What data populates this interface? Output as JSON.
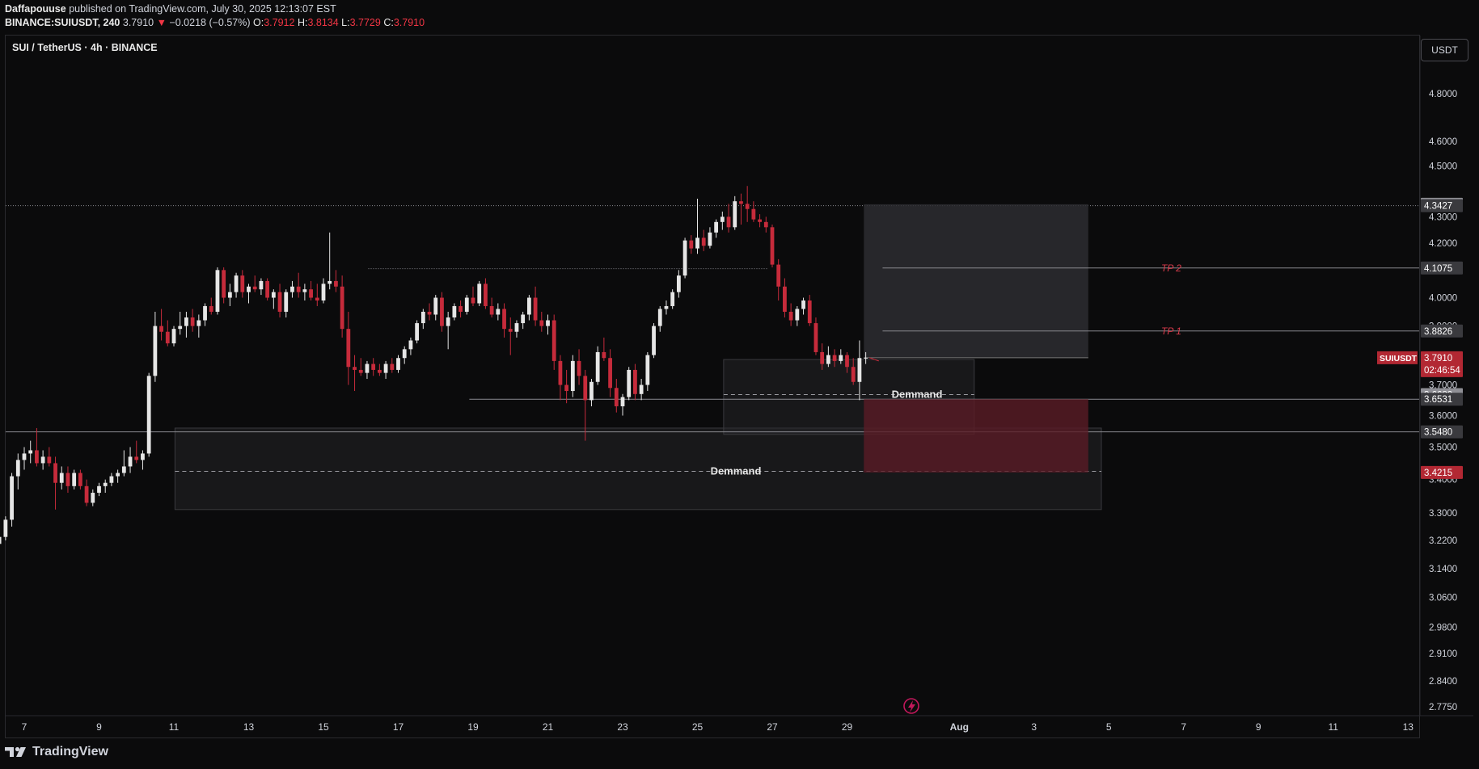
{
  "header": {
    "author": "Daffapouuse",
    "published": "published on TradingView.com, July 30, 2025 12:13:07 EST",
    "symbol_line": "BINANCE:SUIUSDT, 240",
    "last": "3.7910",
    "change": "−0.0218 (−0.57%)",
    "o_label": "O:",
    "o_value": "3.7912",
    "h_label": "H:",
    "h_value": "3.8134",
    "l_label": "L:",
    "l_value": "3.7729",
    "c_label": "C:",
    "c_value": "3.7910"
  },
  "chart_title": "SUI / TetherUS · 4h · BINANCE",
  "currency_button": "USDT",
  "footer": {
    "brand": "TradingView"
  },
  "colors": {
    "background": "#0b0b0c",
    "bull": "#e6e6e6",
    "bear": "#c62b3b",
    "tp_text": "#d83b4b",
    "stop_zone": "#5a1c26",
    "target_zone": "#2d2d31"
  },
  "chart_data": {
    "type": "candlestick",
    "symbol": "SUIUSDT",
    "timeframe": "4h",
    "y_scale": "log",
    "ylim": [
      2.75,
      4.98
    ],
    "xlim_days": [
      6.6,
      44.2
    ],
    "x_ticks": [
      {
        "d": 7,
        "label": "7"
      },
      {
        "d": 9,
        "label": "9"
      },
      {
        "d": 11,
        "label": "11"
      },
      {
        "d": 13,
        "label": "13"
      },
      {
        "d": 15,
        "label": "15"
      },
      {
        "d": 17,
        "label": "17"
      },
      {
        "d": 19,
        "label": "19"
      },
      {
        "d": 21,
        "label": "21"
      },
      {
        "d": 23,
        "label": "23"
      },
      {
        "d": 25,
        "label": "25"
      },
      {
        "d": 27,
        "label": "27"
      },
      {
        "d": 29,
        "label": "29"
      },
      {
        "d": 32,
        "label": "Aug"
      },
      {
        "d": 34,
        "label": "3"
      },
      {
        "d": 36,
        "label": "5"
      },
      {
        "d": 38,
        "label": "7"
      },
      {
        "d": 40,
        "label": "9"
      },
      {
        "d": 42,
        "label": "11"
      },
      {
        "d": 44,
        "label": "13"
      }
    ],
    "y_ticks": [
      "4.8000",
      "4.6000",
      "4.5000",
      "4.3000",
      "4.2000",
      "4.1000",
      "4.0000",
      "3.9000",
      "3.7000",
      "3.6000",
      "3.5000",
      "3.4000",
      "3.3000",
      "3.2200",
      "3.1400",
      "3.0600",
      "2.9800",
      "2.9100",
      "2.8400",
      "2.7750"
    ],
    "price_labels": [
      {
        "value": 4.3484,
        "text": "4.3484",
        "style": "gray"
      },
      {
        "value": 4.3427,
        "text": "4.3427",
        "style": "dark"
      },
      {
        "value": 4.1075,
        "text": "4.1075",
        "style": "dark"
      },
      {
        "value": 3.8826,
        "text": "3.8826",
        "style": "dark"
      },
      {
        "value": 3.791,
        "text": "3.7910",
        "style": "red",
        "countdown": "02:46:54",
        "tag": "SUIUSDT"
      },
      {
        "value": 3.6682,
        "text": "3.6682",
        "style": "gray"
      },
      {
        "value": 3.6531,
        "text": "3.6531",
        "style": "dark"
      },
      {
        "value": 3.548,
        "text": "3.5480",
        "style": "dark"
      },
      {
        "value": 3.4215,
        "text": "3.4215",
        "style": "red"
      }
    ],
    "annotations": [
      {
        "type": "zone",
        "label": "Demmand",
        "d0": 11.03,
        "d1": 35.8,
        "top": 3.56,
        "bottom": 3.31,
        "mid": 3.425
      },
      {
        "type": "zone",
        "label": "Demmand",
        "d0": 25.7,
        "d1": 32.4,
        "top": 3.785,
        "bottom": 3.54,
        "mid": 3.668
      },
      {
        "type": "target",
        "d0": 29.45,
        "d1": 35.45,
        "top": 4.3484,
        "bottom": 3.791
      },
      {
        "type": "stop",
        "d0": 29.45,
        "d1": 35.45,
        "top": 3.6531,
        "bottom": 3.4215
      },
      {
        "type": "level",
        "label": "TP 2",
        "value": 4.1075,
        "d0": 29.95
      },
      {
        "type": "level",
        "label": "TP 1",
        "value": 3.8826,
        "d0": 29.95
      }
    ],
    "candles": [
      {
        "o": 2.9,
        "h": 2.94,
        "l": 2.86,
        "c": 2.89
      },
      {
        "o": 2.89,
        "h": 2.91,
        "l": 2.87,
        "c": 2.9
      },
      {
        "o": 2.9,
        "h": 2.93,
        "l": 2.89,
        "c": 2.92
      },
      {
        "o": 2.92,
        "h": 2.94,
        "l": 2.88,
        "c": 2.9
      },
      {
        "o": 2.9,
        "h": 2.93,
        "l": 2.88,
        "c": 2.92
      },
      {
        "o": 2.92,
        "h": 2.93,
        "l": 2.89,
        "c": 2.9
      },
      {
        "o": 2.9,
        "h": 2.91,
        "l": 2.87,
        "c": 2.89
      },
      {
        "o": 2.89,
        "h": 2.9,
        "l": 2.79,
        "c": 2.86
      },
      {
        "o": 2.86,
        "h": 2.88,
        "l": 2.84,
        "c": 2.85
      },
      {
        "o": 2.85,
        "h": 2.87,
        "l": 2.83,
        "c": 2.86
      },
      {
        "o": 2.86,
        "h": 2.88,
        "l": 2.84,
        "c": 2.87
      },
      {
        "o": 2.87,
        "h": 2.9,
        "l": 2.85,
        "c": 2.89
      },
      {
        "o": 2.89,
        "h": 2.9,
        "l": 2.86,
        "c": 2.87
      },
      {
        "o": 2.87,
        "h": 2.91,
        "l": 2.86,
        "c": 2.9
      },
      {
        "o": 2.9,
        "h": 2.92,
        "l": 2.88,
        "c": 2.89
      },
      {
        "o": 2.89,
        "h": 2.92,
        "l": 2.88,
        "c": 2.91
      },
      {
        "o": 2.91,
        "h": 2.93,
        "l": 2.9,
        "c": 2.92
      },
      {
        "o": 2.92,
        "h": 2.95,
        "l": 2.91,
        "c": 2.94
      },
      {
        "o": 2.94,
        "h": 2.96,
        "l": 2.93,
        "c": 2.95
      },
      {
        "o": 2.95,
        "h": 3.02,
        "l": 2.94,
        "c": 3.01
      },
      {
        "o": 3.01,
        "h": 3.06,
        "l": 3.0,
        "c": 3.05
      },
      {
        "o": 3.05,
        "h": 3.09,
        "l": 3.03,
        "c": 3.08
      },
      {
        "o": 3.08,
        "h": 3.17,
        "l": 3.07,
        "c": 3.16
      },
      {
        "o": 3.16,
        "h": 3.23,
        "l": 3.14,
        "c": 3.21
      },
      {
        "o": 3.21,
        "h": 3.25,
        "l": 3.19,
        "c": 3.23
      },
      {
        "o": 3.23,
        "h": 3.29,
        "l": 3.22,
        "c": 3.28
      },
      {
        "o": 3.28,
        "h": 3.42,
        "l": 3.26,
        "c": 3.41
      },
      {
        "o": 3.41,
        "h": 3.48,
        "l": 3.37,
        "c": 3.46
      },
      {
        "o": 3.46,
        "h": 3.5,
        "l": 3.43,
        "c": 3.48
      },
      {
        "o": 3.48,
        "h": 3.52,
        "l": 3.45,
        "c": 3.49
      },
      {
        "o": 3.49,
        "h": 3.56,
        "l": 3.44,
        "c": 3.45
      },
      {
        "o": 3.45,
        "h": 3.49,
        "l": 3.43,
        "c": 3.47
      },
      {
        "o": 3.47,
        "h": 3.5,
        "l": 3.44,
        "c": 3.45
      },
      {
        "o": 3.45,
        "h": 3.47,
        "l": 3.31,
        "c": 3.39
      },
      {
        "o": 3.39,
        "h": 3.44,
        "l": 3.37,
        "c": 3.42
      },
      {
        "o": 3.42,
        "h": 3.44,
        "l": 3.36,
        "c": 3.38
      },
      {
        "o": 3.38,
        "h": 3.43,
        "l": 3.37,
        "c": 3.42
      },
      {
        "o": 3.42,
        "h": 3.43,
        "l": 3.37,
        "c": 3.38
      },
      {
        "o": 3.38,
        "h": 3.4,
        "l": 3.32,
        "c": 3.33
      },
      {
        "o": 3.33,
        "h": 3.37,
        "l": 3.32,
        "c": 3.36
      },
      {
        "o": 3.36,
        "h": 3.39,
        "l": 3.35,
        "c": 3.38
      },
      {
        "o": 3.38,
        "h": 3.4,
        "l": 3.36,
        "c": 3.39
      },
      {
        "o": 3.39,
        "h": 3.42,
        "l": 3.38,
        "c": 3.41
      },
      {
        "o": 3.41,
        "h": 3.43,
        "l": 3.39,
        "c": 3.42
      },
      {
        "o": 3.42,
        "h": 3.49,
        "l": 3.41,
        "c": 3.44
      },
      {
        "o": 3.44,
        "h": 3.5,
        "l": 3.42,
        "c": 3.47
      },
      {
        "o": 3.47,
        "h": 3.52,
        "l": 3.45,
        "c": 3.46
      },
      {
        "o": 3.46,
        "h": 3.49,
        "l": 3.43,
        "c": 3.48
      },
      {
        "o": 3.48,
        "h": 3.74,
        "l": 3.47,
        "c": 3.73
      },
      {
        "o": 3.73,
        "h": 3.95,
        "l": 3.71,
        "c": 3.9
      },
      {
        "o": 3.9,
        "h": 3.96,
        "l": 3.85,
        "c": 3.88
      },
      {
        "o": 3.88,
        "h": 3.92,
        "l": 3.83,
        "c": 3.84
      },
      {
        "o": 3.84,
        "h": 3.9,
        "l": 3.83,
        "c": 3.89
      },
      {
        "o": 3.89,
        "h": 3.95,
        "l": 3.87,
        "c": 3.9
      },
      {
        "o": 3.9,
        "h": 3.95,
        "l": 3.86,
        "c": 3.93
      },
      {
        "o": 3.93,
        "h": 3.96,
        "l": 3.88,
        "c": 3.9
      },
      {
        "o": 3.9,
        "h": 3.94,
        "l": 3.86,
        "c": 3.92
      },
      {
        "o": 3.92,
        "h": 3.98,
        "l": 3.9,
        "c": 3.97
      },
      {
        "o": 3.97,
        "h": 4.0,
        "l": 3.94,
        "c": 3.95
      },
      {
        "o": 3.95,
        "h": 4.11,
        "l": 3.94,
        "c": 4.1
      },
      {
        "o": 4.1,
        "h": 4.11,
        "l": 3.98,
        "c": 4.0
      },
      {
        "o": 4.0,
        "h": 4.05,
        "l": 3.97,
        "c": 4.02
      },
      {
        "o": 4.02,
        "h": 4.09,
        "l": 4.0,
        "c": 4.08
      },
      {
        "o": 4.08,
        "h": 4.1,
        "l": 4.0,
        "c": 4.02
      },
      {
        "o": 4.02,
        "h": 4.05,
        "l": 3.98,
        "c": 4.04
      },
      {
        "o": 4.04,
        "h": 4.08,
        "l": 4.02,
        "c": 4.03
      },
      {
        "o": 4.03,
        "h": 4.07,
        "l": 4.01,
        "c": 4.06
      },
      {
        "o": 4.06,
        "h": 4.07,
        "l": 3.99,
        "c": 4.0
      },
      {
        "o": 4.0,
        "h": 4.03,
        "l": 3.96,
        "c": 4.02
      },
      {
        "o": 4.02,
        "h": 4.05,
        "l": 3.93,
        "c": 3.95
      },
      {
        "o": 3.95,
        "h": 4.03,
        "l": 3.93,
        "c": 4.02
      },
      {
        "o": 4.02,
        "h": 4.06,
        "l": 4.0,
        "c": 4.04
      },
      {
        "o": 4.04,
        "h": 4.09,
        "l": 4.0,
        "c": 4.02
      },
      {
        "o": 4.02,
        "h": 4.05,
        "l": 3.99,
        "c": 4.03
      },
      {
        "o": 4.03,
        "h": 4.06,
        "l": 3.99,
        "c": 4.0
      },
      {
        "o": 4.0,
        "h": 4.05,
        "l": 3.97,
        "c": 3.99
      },
      {
        "o": 3.99,
        "h": 4.07,
        "l": 3.98,
        "c": 4.05
      },
      {
        "o": 4.05,
        "h": 4.24,
        "l": 4.03,
        "c": 4.06
      },
      {
        "o": 4.06,
        "h": 4.1,
        "l": 4.02,
        "c": 4.04
      },
      {
        "o": 4.04,
        "h": 4.08,
        "l": 3.86,
        "c": 3.89
      },
      {
        "o": 3.89,
        "h": 3.95,
        "l": 3.7,
        "c": 3.76
      },
      {
        "o": 3.76,
        "h": 3.8,
        "l": 3.68,
        "c": 3.75
      },
      {
        "o": 3.75,
        "h": 3.79,
        "l": 3.73,
        "c": 3.74
      },
      {
        "o": 3.74,
        "h": 3.78,
        "l": 3.72,
        "c": 3.77
      },
      {
        "o": 3.77,
        "h": 3.79,
        "l": 3.73,
        "c": 3.75
      },
      {
        "o": 3.75,
        "h": 3.77,
        "l": 3.73,
        "c": 3.74
      },
      {
        "o": 3.74,
        "h": 3.78,
        "l": 3.72,
        "c": 3.77
      },
      {
        "o": 3.77,
        "h": 3.79,
        "l": 3.74,
        "c": 3.75
      },
      {
        "o": 3.75,
        "h": 3.8,
        "l": 3.74,
        "c": 3.79
      },
      {
        "o": 3.79,
        "h": 3.83,
        "l": 3.77,
        "c": 3.82
      },
      {
        "o": 3.82,
        "h": 3.86,
        "l": 3.8,
        "c": 3.85
      },
      {
        "o": 3.85,
        "h": 3.92,
        "l": 3.84,
        "c": 3.91
      },
      {
        "o": 3.91,
        "h": 3.96,
        "l": 3.89,
        "c": 3.95
      },
      {
        "o": 3.95,
        "h": 3.98,
        "l": 3.92,
        "c": 3.94
      },
      {
        "o": 3.94,
        "h": 4.01,
        "l": 3.92,
        "c": 4.0
      },
      {
        "o": 4.0,
        "h": 4.02,
        "l": 3.88,
        "c": 3.9
      },
      {
        "o": 3.9,
        "h": 3.95,
        "l": 3.82,
        "c": 3.93
      },
      {
        "o": 3.93,
        "h": 3.98,
        "l": 3.92,
        "c": 3.97
      },
      {
        "o": 3.97,
        "h": 3.99,
        "l": 3.93,
        "c": 3.95
      },
      {
        "o": 3.95,
        "h": 4.01,
        "l": 3.94,
        "c": 4.0
      },
      {
        "o": 4.0,
        "h": 4.04,
        "l": 3.97,
        "c": 3.98
      },
      {
        "o": 3.98,
        "h": 4.06,
        "l": 3.97,
        "c": 4.05
      },
      {
        "o": 4.05,
        "h": 4.07,
        "l": 3.96,
        "c": 3.97
      },
      {
        "o": 3.97,
        "h": 4.0,
        "l": 3.93,
        "c": 3.94
      },
      {
        "o": 3.94,
        "h": 3.98,
        "l": 3.92,
        "c": 3.96
      },
      {
        "o": 3.96,
        "h": 3.98,
        "l": 3.86,
        "c": 3.89
      },
      {
        "o": 3.89,
        "h": 3.93,
        "l": 3.8,
        "c": 3.88
      },
      {
        "o": 3.88,
        "h": 3.92,
        "l": 3.86,
        "c": 3.91
      },
      {
        "o": 3.91,
        "h": 3.95,
        "l": 3.89,
        "c": 3.94
      },
      {
        "o": 3.94,
        "h": 4.01,
        "l": 3.92,
        "c": 4.0
      },
      {
        "o": 4.0,
        "h": 4.04,
        "l": 3.9,
        "c": 3.92
      },
      {
        "o": 3.92,
        "h": 3.95,
        "l": 3.88,
        "c": 3.9
      },
      {
        "o": 3.9,
        "h": 3.94,
        "l": 3.87,
        "c": 3.92
      },
      {
        "o": 3.92,
        "h": 3.94,
        "l": 3.75,
        "c": 3.78
      },
      {
        "o": 3.78,
        "h": 3.8,
        "l": 3.65,
        "c": 3.7
      },
      {
        "o": 3.7,
        "h": 3.75,
        "l": 3.64,
        "c": 3.68
      },
      {
        "o": 3.68,
        "h": 3.8,
        "l": 3.66,
        "c": 3.78
      },
      {
        "o": 3.78,
        "h": 3.82,
        "l": 3.7,
        "c": 3.73
      },
      {
        "o": 3.73,
        "h": 3.75,
        "l": 3.52,
        "c": 3.65
      },
      {
        "o": 3.65,
        "h": 3.72,
        "l": 3.63,
        "c": 3.71
      },
      {
        "o": 3.71,
        "h": 3.83,
        "l": 3.7,
        "c": 3.81
      },
      {
        "o": 3.81,
        "h": 3.86,
        "l": 3.78,
        "c": 3.79
      },
      {
        "o": 3.79,
        "h": 3.82,
        "l": 3.66,
        "c": 3.69
      },
      {
        "o": 3.69,
        "h": 3.72,
        "l": 3.61,
        "c": 3.63
      },
      {
        "o": 3.63,
        "h": 3.67,
        "l": 3.6,
        "c": 3.66
      },
      {
        "o": 3.66,
        "h": 3.76,
        "l": 3.65,
        "c": 3.75
      },
      {
        "o": 3.75,
        "h": 3.77,
        "l": 3.65,
        "c": 3.67
      },
      {
        "o": 3.67,
        "h": 3.72,
        "l": 3.65,
        "c": 3.7
      },
      {
        "o": 3.7,
        "h": 3.81,
        "l": 3.68,
        "c": 3.8
      },
      {
        "o": 3.8,
        "h": 3.91,
        "l": 3.79,
        "c": 3.9
      },
      {
        "o": 3.9,
        "h": 3.97,
        "l": 3.88,
        "c": 3.96
      },
      {
        "o": 3.96,
        "h": 3.99,
        "l": 3.94,
        "c": 3.97
      },
      {
        "o": 3.97,
        "h": 4.03,
        "l": 3.96,
        "c": 4.02
      },
      {
        "o": 4.02,
        "h": 4.1,
        "l": 4.0,
        "c": 4.08
      },
      {
        "o": 4.08,
        "h": 4.22,
        "l": 4.07,
        "c": 4.21
      },
      {
        "o": 4.21,
        "h": 4.23,
        "l": 4.16,
        "c": 4.18
      },
      {
        "o": 4.18,
        "h": 4.37,
        "l": 4.16,
        "c": 4.22
      },
      {
        "o": 4.22,
        "h": 4.25,
        "l": 4.17,
        "c": 4.19
      },
      {
        "o": 4.19,
        "h": 4.26,
        "l": 4.18,
        "c": 4.24
      },
      {
        "o": 4.24,
        "h": 4.29,
        "l": 4.22,
        "c": 4.28
      },
      {
        "o": 4.28,
        "h": 4.32,
        "l": 4.25,
        "c": 4.3
      },
      {
        "o": 4.3,
        "h": 4.35,
        "l": 4.24,
        "c": 4.26
      },
      {
        "o": 4.26,
        "h": 4.38,
        "l": 4.25,
        "c": 4.36
      },
      {
        "o": 4.36,
        "h": 4.39,
        "l": 4.27,
        "c": 4.35
      },
      {
        "o": 4.35,
        "h": 4.42,
        "l": 4.28,
        "c": 4.33
      },
      {
        "o": 4.33,
        "h": 4.36,
        "l": 4.28,
        "c": 4.29
      },
      {
        "o": 4.29,
        "h": 4.31,
        "l": 4.26,
        "c": 4.28
      },
      {
        "o": 4.28,
        "h": 4.3,
        "l": 4.24,
        "c": 4.26
      },
      {
        "o": 4.26,
        "h": 4.27,
        "l": 4.11,
        "c": 4.12
      },
      {
        "o": 4.12,
        "h": 4.14,
        "l": 3.99,
        "c": 4.04
      },
      {
        "o": 4.04,
        "h": 4.07,
        "l": 3.93,
        "c": 3.95
      },
      {
        "o": 3.95,
        "h": 3.98,
        "l": 3.9,
        "c": 3.92
      },
      {
        "o": 3.92,
        "h": 3.97,
        "l": 3.9,
        "c": 3.96
      },
      {
        "o": 3.96,
        "h": 4.0,
        "l": 3.94,
        "c": 3.99
      },
      {
        "o": 3.99,
        "h": 4.01,
        "l": 3.9,
        "c": 3.91
      },
      {
        "o": 3.91,
        "h": 3.93,
        "l": 3.8,
        "c": 3.81
      },
      {
        "o": 3.81,
        "h": 3.84,
        "l": 3.75,
        "c": 3.77
      },
      {
        "o": 3.77,
        "h": 3.83,
        "l": 3.76,
        "c": 3.8
      },
      {
        "o": 3.8,
        "h": 3.82,
        "l": 3.76,
        "c": 3.78
      },
      {
        "o": 3.78,
        "h": 3.82,
        "l": 3.77,
        "c": 3.8
      },
      {
        "o": 3.8,
        "h": 3.81,
        "l": 3.74,
        "c": 3.76
      },
      {
        "o": 3.76,
        "h": 3.79,
        "l": 3.7,
        "c": 3.71
      },
      {
        "o": 3.71,
        "h": 3.85,
        "l": 3.65,
        "c": 3.79
      },
      {
        "o": 3.79,
        "h": 3.81,
        "l": 3.77,
        "c": 3.791
      }
    ]
  }
}
